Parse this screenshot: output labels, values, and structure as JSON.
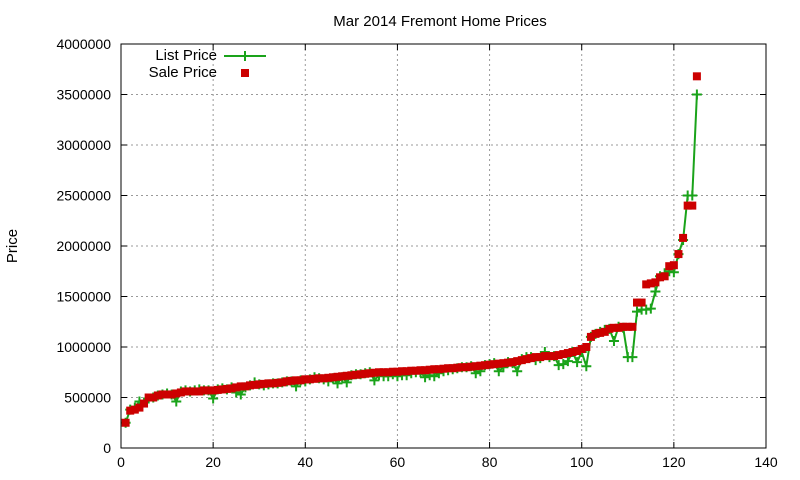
{
  "chart_data": {
    "type": "scatter",
    "title": "Mar 2014 Fremont Home Prices",
    "xlabel": "",
    "ylabel": "Price",
    "xlim": [
      0,
      140
    ],
    "ylim": [
      0,
      4000000
    ],
    "x_ticks": [
      0,
      20,
      40,
      60,
      80,
      100,
      120,
      140
    ],
    "y_ticks": [
      0,
      500000,
      1000000,
      1500000,
      2000000,
      2500000,
      3000000,
      3500000,
      4000000
    ],
    "grid": true,
    "legend_position": "top-left",
    "series": [
      {
        "name": "List Price",
        "style": "linespoints",
        "marker": "plus",
        "color": "#1aa31a",
        "x": [
          1,
          2,
          3,
          4,
          5,
          6,
          7,
          8,
          9,
          10,
          11,
          12,
          13,
          14,
          15,
          16,
          17,
          18,
          19,
          20,
          21,
          22,
          23,
          24,
          25,
          26,
          27,
          28,
          29,
          30,
          31,
          32,
          33,
          34,
          35,
          36,
          37,
          38,
          39,
          40,
          41,
          42,
          43,
          44,
          45,
          46,
          47,
          48,
          49,
          50,
          51,
          52,
          53,
          54,
          55,
          56,
          57,
          58,
          59,
          60,
          61,
          62,
          63,
          64,
          65,
          66,
          67,
          68,
          69,
          70,
          71,
          72,
          73,
          74,
          75,
          76,
          77,
          78,
          79,
          80,
          81,
          82,
          83,
          84,
          85,
          86,
          87,
          88,
          89,
          90,
          91,
          92,
          93,
          94,
          95,
          96,
          97,
          98,
          99,
          100,
          101,
          102,
          103,
          104,
          105,
          106,
          107,
          108,
          109,
          110,
          111,
          112,
          113,
          114,
          115,
          116,
          117,
          118,
          119,
          120,
          121,
          122,
          123,
          124,
          125
        ],
        "y": [
          250000,
          380000,
          400000,
          460000,
          450000,
          490000,
          500000,
          520000,
          530000,
          540000,
          530000,
          460000,
          560000,
          570000,
          560000,
          570000,
          580000,
          570000,
          570000,
          490000,
          580000,
          590000,
          580000,
          600000,
          550000,
          530000,
          600000,
          620000,
          650000,
          630000,
          620000,
          630000,
          640000,
          640000,
          650000,
          660000,
          660000,
          610000,
          670000,
          660000,
          680000,
          700000,
          690000,
          680000,
          660000,
          690000,
          640000,
          700000,
          650000,
          720000,
          730000,
          730000,
          740000,
          750000,
          670000,
          720000,
          710000,
          710000,
          730000,
          710000,
          720000,
          720000,
          740000,
          750000,
          750000,
          700000,
          720000,
          710000,
          740000,
          760000,
          770000,
          780000,
          790000,
          800000,
          800000,
          810000,
          740000,
          760000,
          820000,
          830000,
          840000,
          760000,
          800000,
          850000,
          840000,
          760000,
          880000,
          900000,
          900000,
          870000,
          890000,
          950000,
          900000,
          910000,
          820000,
          830000,
          860000,
          950000,
          850000,
          950000,
          810000,
          1100000,
          1130000,
          1150000,
          1170000,
          1180000,
          1060000,
          1200000,
          1190000,
          900000,
          900000,
          1350000,
          1370000,
          1370000,
          1380000,
          1550000,
          1700000,
          1730000,
          1750000,
          1740000,
          1920000,
          2060000,
          2500000,
          2500000,
          3500000
        ]
      },
      {
        "name": "Sale Price",
        "style": "points",
        "marker": "square",
        "color": "#cc0000",
        "x": [
          1,
          2,
          3,
          4,
          5,
          6,
          7,
          8,
          9,
          10,
          11,
          12,
          13,
          14,
          15,
          16,
          17,
          18,
          19,
          20,
          21,
          22,
          23,
          24,
          25,
          26,
          27,
          28,
          29,
          30,
          31,
          32,
          33,
          34,
          35,
          36,
          37,
          38,
          39,
          40,
          41,
          42,
          43,
          44,
          45,
          46,
          47,
          48,
          49,
          50,
          51,
          52,
          53,
          54,
          55,
          56,
          57,
          58,
          59,
          60,
          61,
          62,
          63,
          64,
          65,
          66,
          67,
          68,
          69,
          70,
          71,
          72,
          73,
          74,
          75,
          76,
          77,
          78,
          79,
          80,
          81,
          82,
          83,
          84,
          85,
          86,
          87,
          88,
          89,
          90,
          91,
          92,
          93,
          94,
          95,
          96,
          97,
          98,
          99,
          100,
          101,
          102,
          103,
          104,
          105,
          106,
          107,
          108,
          109,
          110,
          111,
          112,
          113,
          114,
          115,
          116,
          117,
          118,
          119,
          120,
          121,
          122,
          123,
          124,
          125
        ],
        "y": [
          250000,
          370000,
          380000,
          400000,
          440000,
          500000,
          500000,
          520000,
          530000,
          530000,
          530000,
          540000,
          550000,
          560000,
          560000,
          560000,
          560000,
          570000,
          570000,
          570000,
          575000,
          580000,
          585000,
          590000,
          600000,
          610000,
          610000,
          620000,
          625000,
          630000,
          635000,
          640000,
          640000,
          645000,
          650000,
          660000,
          665000,
          670000,
          670000,
          680000,
          680000,
          685000,
          690000,
          690000,
          695000,
          700000,
          705000,
          710000,
          715000,
          720000,
          725000,
          730000,
          735000,
          740000,
          745000,
          750000,
          750000,
          750000,
          755000,
          755000,
          760000,
          760000,
          765000,
          765000,
          770000,
          770000,
          775000,
          780000,
          780000,
          785000,
          790000,
          790000,
          795000,
          800000,
          800000,
          805000,
          810000,
          815000,
          820000,
          825000,
          830000,
          835000,
          840000,
          845000,
          850000,
          860000,
          870000,
          880000,
          890000,
          900000,
          900000,
          910000,
          910000,
          910000,
          920000,
          930000,
          940000,
          950000,
          960000,
          980000,
          1000000,
          1100000,
          1130000,
          1140000,
          1150000,
          1180000,
          1190000,
          1190000,
          1200000,
          1200000,
          1200000,
          1440000,
          1440000,
          1620000,
          1630000,
          1640000,
          1690000,
          1700000,
          1800000,
          1810000,
          1920000,
          2080000,
          2400000,
          2400000,
          3680000
        ]
      }
    ]
  }
}
